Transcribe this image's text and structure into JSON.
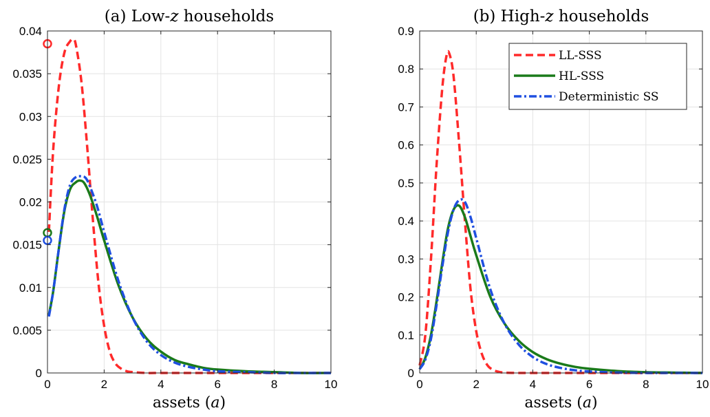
{
  "chart_data": [
    {
      "type": "line",
      "title": "(a) Low-z households",
      "title_text": "(a) Low-",
      "title_var": "z",
      "title_rest": " households",
      "xlabel_text": "assets (",
      "xlabel_var": "a",
      "xlabel_rest": ")",
      "xlim": [
        0,
        10
      ],
      "ylim": [
        0,
        0.04
      ],
      "xticks": [
        0,
        2,
        4,
        6,
        8,
        10
      ],
      "yticks": [
        0,
        0.005,
        0.01,
        0.015,
        0.02,
        0.025,
        0.03,
        0.035,
        0.04
      ],
      "ytick_labels": [
        "0",
        "0.005",
        "0.01",
        "0.015",
        "0.02",
        "0.025",
        "0.03",
        "0.035",
        "0.04"
      ],
      "grid": true,
      "series": [
        {
          "name": "LL-SSS",
          "color": "#ff2a2a",
          "style": "dashed",
          "x": [
            0.05,
            0.2,
            0.4,
            0.6,
            0.8,
            0.9,
            1.0,
            1.2,
            1.4,
            1.6,
            1.8,
            2.0,
            2.2,
            2.4,
            2.6,
            2.8,
            3.0,
            3.5,
            4.0,
            5.0,
            6.0,
            8.0,
            10.0
          ],
          "y": [
            0.0165,
            0.026,
            0.0335,
            0.0375,
            0.0388,
            0.039,
            0.0384,
            0.034,
            0.0265,
            0.018,
            0.0105,
            0.0055,
            0.0025,
            0.0011,
            0.0005,
            0.0002,
            0.0001,
            0.0,
            0.0,
            0.0,
            0.0,
            0.0,
            0.0
          ],
          "marker": {
            "x": 0,
            "y": 0.0385
          }
        },
        {
          "name": "HL-SSS",
          "color": "#1a7a1a",
          "style": "solid",
          "x": [
            0.05,
            0.2,
            0.4,
            0.6,
            0.8,
            1.0,
            1.15,
            1.3,
            1.5,
            1.75,
            2.0,
            2.5,
            3.0,
            3.5,
            4.0,
            4.5,
            5.0,
            5.5,
            6.0,
            7.0,
            8.0,
            9.0,
            10.0
          ],
          "y": [
            0.0068,
            0.0095,
            0.0145,
            0.019,
            0.0215,
            0.0223,
            0.0225,
            0.0222,
            0.0208,
            0.0183,
            0.0155,
            0.0103,
            0.0065,
            0.004,
            0.0025,
            0.0015,
            0.001,
            0.0006,
            0.0004,
            0.0002,
            0.0001,
            0.0,
            0.0
          ],
          "marker": {
            "x": 0,
            "y": 0.0164
          }
        },
        {
          "name": "Deterministic SS",
          "color": "#1f4fe0",
          "style": "dashdot",
          "x": [
            0.05,
            0.2,
            0.4,
            0.6,
            0.8,
            1.0,
            1.2,
            1.35,
            1.5,
            1.75,
            2.0,
            2.5,
            3.0,
            3.5,
            4.0,
            4.5,
            5.0,
            5.5,
            6.0,
            7.0,
            8.0,
            9.0,
            10.0
          ],
          "y": [
            0.0066,
            0.0095,
            0.0145,
            0.0192,
            0.022,
            0.0229,
            0.023,
            0.0228,
            0.0218,
            0.0195,
            0.0165,
            0.0108,
            0.0065,
            0.0037,
            0.0021,
            0.0012,
            0.0007,
            0.0004,
            0.0002,
            0.0001,
            0.0,
            0.0,
            0.0
          ],
          "marker": {
            "x": 0,
            "y": 0.0155
          }
        }
      ]
    },
    {
      "type": "line",
      "title": "(b) High-z households",
      "title_text": "(b) High-",
      "title_var": "z",
      "title_rest": " households",
      "xlabel_text": "assets (",
      "xlabel_var": "a",
      "xlabel_rest": ")",
      "xlim": [
        0,
        10
      ],
      "ylim": [
        0,
        0.9
      ],
      "xticks": [
        0,
        2,
        4,
        6,
        8,
        10
      ],
      "yticks": [
        0,
        0.1,
        0.2,
        0.3,
        0.4,
        0.5,
        0.6,
        0.7,
        0.8,
        0.9
      ],
      "ytick_labels": [
        "0",
        "0.1",
        "0.2",
        "0.3",
        "0.4",
        "0.5",
        "0.6",
        "0.7",
        "0.8",
        "0.9"
      ],
      "grid": true,
      "legend_position": "top-right",
      "series": [
        {
          "name": "LL-SSS",
          "color": "#ff2a2a",
          "style": "dashed",
          "x": [
            0.0,
            0.2,
            0.4,
            0.6,
            0.8,
            0.95,
            1.05,
            1.2,
            1.4,
            1.6,
            1.8,
            2.0,
            2.2,
            2.4,
            2.6,
            2.8,
            3.0,
            3.5,
            4.0,
            5.0,
            6.0,
            8.0,
            10.0
          ],
          "y": [
            0.02,
            0.1,
            0.3,
            0.55,
            0.75,
            0.835,
            0.84,
            0.78,
            0.6,
            0.4,
            0.22,
            0.11,
            0.05,
            0.02,
            0.008,
            0.003,
            0.001,
            0.0,
            0.0,
            0.0,
            0.0,
            0.0,
            0.0
          ]
        },
        {
          "name": "HL-SSS",
          "color": "#1a7a1a",
          "style": "solid",
          "x": [
            0.0,
            0.2,
            0.4,
            0.6,
            0.8,
            1.0,
            1.2,
            1.4,
            1.6,
            1.8,
            2.0,
            2.5,
            3.0,
            3.5,
            4.0,
            4.5,
            5.0,
            5.5,
            6.0,
            7.0,
            8.0,
            9.0,
            10.0
          ],
          "y": [
            0.01,
            0.04,
            0.1,
            0.19,
            0.29,
            0.38,
            0.43,
            0.44,
            0.41,
            0.36,
            0.31,
            0.2,
            0.13,
            0.085,
            0.055,
            0.036,
            0.024,
            0.016,
            0.011,
            0.005,
            0.002,
            0.001,
            0.0
          ]
        },
        {
          "name": "Deterministic SS",
          "color": "#1f4fe0",
          "style": "dashdot",
          "x": [
            0.0,
            0.2,
            0.4,
            0.6,
            0.8,
            1.0,
            1.2,
            1.4,
            1.6,
            1.8,
            2.0,
            2.5,
            3.0,
            3.5,
            4.0,
            4.5,
            5.0,
            5.5,
            6.0,
            7.0,
            8.0,
            9.0,
            10.0
          ],
          "y": [
            0.01,
            0.035,
            0.09,
            0.18,
            0.28,
            0.37,
            0.43,
            0.455,
            0.45,
            0.41,
            0.355,
            0.22,
            0.13,
            0.075,
            0.042,
            0.023,
            0.013,
            0.007,
            0.004,
            0.001,
            0.0,
            0.0,
            0.0
          ]
        }
      ]
    }
  ]
}
